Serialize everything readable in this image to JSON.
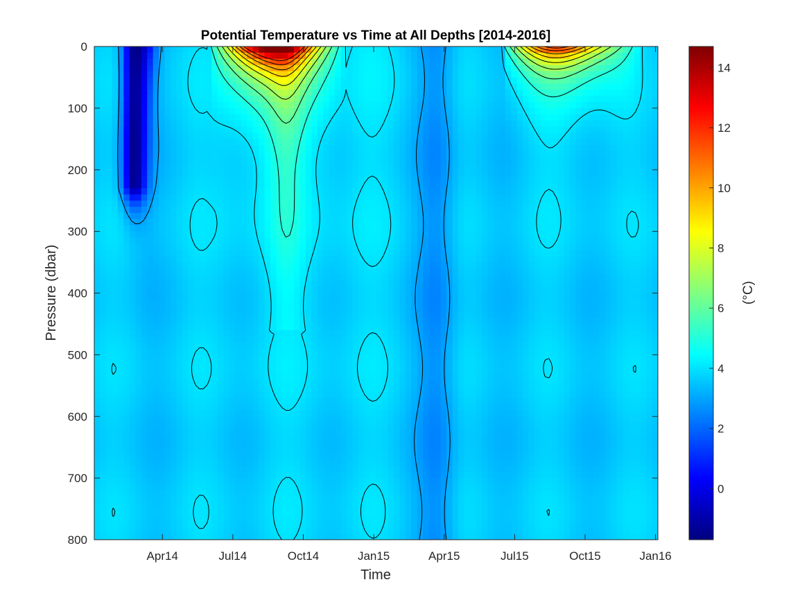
{
  "chart_data": {
    "type": "heatmap",
    "title": "Potential Temperature vs Time at All Depths [2014-2016]",
    "xlabel": "Time",
    "ylabel": "Pressure (dbar)",
    "x_tick_labels": [
      "Apr14",
      "Jul14",
      "Oct14",
      "Jan15",
      "Apr15",
      "Jul15",
      "Oct15",
      "Jan16"
    ],
    "x_tick_months": [
      3,
      6,
      9,
      12,
      15,
      18,
      21,
      24
    ],
    "xlim_months": [
      0.1,
      24.1
    ],
    "y_ticks": [
      0,
      100,
      200,
      300,
      400,
      500,
      600,
      700,
      800
    ],
    "ylim": [
      0,
      800
    ],
    "y_reversed": true,
    "colorbar": {
      "label": "(°C)",
      "range": [
        -1.7,
        14.7
      ],
      "ticks": [
        0,
        2,
        4,
        6,
        8,
        10,
        12,
        14
      ],
      "colormap": "jet"
    },
    "background_temperature": 3.6,
    "features": [
      {
        "description": "cold winter 2014 intrusion",
        "month_center": 1.8,
        "month_width": 0.35,
        "depth_bottom": 230,
        "min_temp": -1.4
      },
      {
        "description": "cold winter 2014 secondary",
        "month_center": 2.4,
        "month_width": 0.3,
        "depth_bottom": 120,
        "min_temp": 1.5
      },
      {
        "description": "summer 2014 warm surface layer",
        "month_start": 5.0,
        "month_end": 10.8,
        "depth_bottom": 150,
        "max_temp": 14.5
      },
      {
        "description": "autumn 2014 warm tongue",
        "month_center": 8.3,
        "month_width": 0.5,
        "depth_bottom": 460,
        "max_temp": 6.2
      },
      {
        "description": "spring 2015 cold column",
        "month_center": 14.7,
        "month_width": 0.6,
        "depth_bottom": 800,
        "min_temp": 2.6
      },
      {
        "description": "summer 2015 warm surface layer",
        "month_start": 17.5,
        "month_end": 23.5,
        "depth_bottom": 120,
        "max_temp": 11.5
      }
    ]
  }
}
